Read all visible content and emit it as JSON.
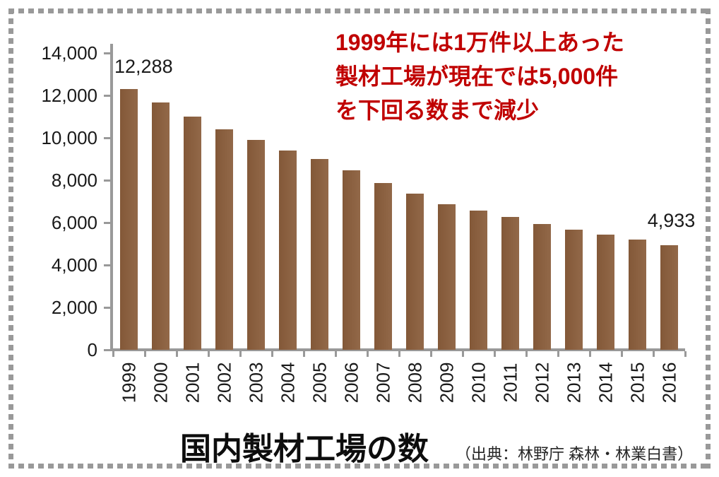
{
  "border_color": "#999999",
  "chart_data": {
    "type": "bar",
    "title": "国内製材工場の数",
    "source_note": "（出典：林野庁 森林・林業白書）",
    "categories": [
      "1999",
      "2000",
      "2001",
      "2002",
      "2003",
      "2004",
      "2005",
      "2006",
      "2007",
      "2008",
      "2009",
      "2010",
      "2011",
      "2012",
      "2013",
      "2014",
      "2015",
      "2016"
    ],
    "values": [
      12288,
      11650,
      11000,
      10400,
      9900,
      9400,
      9000,
      8480,
      7870,
      7370,
      6870,
      6570,
      6260,
      5930,
      5670,
      5440,
      5200,
      4933
    ],
    "ylim": [
      0,
      14000
    ],
    "y_tick_labels": [
      "14,000",
      "12,000",
      "10,000",
      "8,000",
      "6,000",
      "4,000",
      "2,000",
      "0"
    ],
    "grid": false,
    "legend_position": "none",
    "bar_color": "#8a5d3b",
    "axis_color": "#999999",
    "first_bar_label": "12,288",
    "last_bar_label": "4,933"
  },
  "annotation": {
    "text": "1999年には1万件以上あった\n製材工場が現在では5,000件\nを下回る数まで減少",
    "color": "#c00000"
  }
}
